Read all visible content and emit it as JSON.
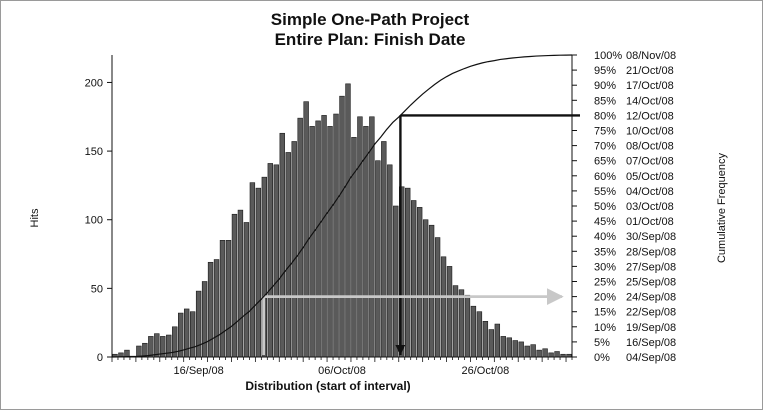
{
  "chart_data": {
    "type": "bar",
    "title": "Simple One-Path Project",
    "subtitle": "Entire Plan: Finish Date",
    "xlabel": "Distribution (start of interval)",
    "ylabel": "Hits",
    "y2label": "Cumulative Frequency",
    "ylim": [
      0,
      220
    ],
    "y_ticks": [
      0,
      50,
      100,
      150,
      200
    ],
    "x_tick_labels": [
      "16/Sep/08",
      "06/Oct/08",
      "26/Oct/08"
    ],
    "x_tick_bins": [
      14.5,
      38.5,
      62.5
    ],
    "bins": 77,
    "values": [
      2,
      3,
      5,
      0,
      8,
      10,
      15,
      17,
      15,
      16,
      22,
      32,
      35,
      33,
      48,
      55,
      69,
      71,
      85,
      85,
      104,
      107,
      98,
      127,
      123,
      131,
      141,
      140,
      163,
      149,
      157,
      174,
      186,
      168,
      172,
      176,
      168,
      177,
      190,
      199,
      160,
      175,
      168,
      175,
      143,
      157,
      140,
      110,
      124,
      123,
      114,
      109,
      100,
      96,
      87,
      73,
      66,
      52,
      49,
      45,
      37,
      33,
      26,
      20,
      24,
      15,
      14,
      12,
      11,
      8,
      9,
      5,
      6,
      3,
      4,
      2,
      2
    ],
    "cumulative_frequency_labels": [
      {
        "percent": "0%",
        "date": "04/Sep/08"
      },
      {
        "percent": "5%",
        "date": "16/Sep/08"
      },
      {
        "percent": "10%",
        "date": "19/Sep/08"
      },
      {
        "percent": "15%",
        "date": "22/Sep/08"
      },
      {
        "percent": "20%",
        "date": "24/Sep/08"
      },
      {
        "percent": "25%",
        "date": "25/Sep/08"
      },
      {
        "percent": "30%",
        "date": "27/Sep/08"
      },
      {
        "percent": "35%",
        "date": "28/Sep/08"
      },
      {
        "percent": "40%",
        "date": "30/Sep/08"
      },
      {
        "percent": "45%",
        "date": "01/Oct/08"
      },
      {
        "percent": "50%",
        "date": "03/Oct/08"
      },
      {
        "percent": "55%",
        "date": "04/Oct/08"
      },
      {
        "percent": "60%",
        "date": "05/Oct/08"
      },
      {
        "percent": "65%",
        "date": "07/Oct/08"
      },
      {
        "percent": "70%",
        "date": "08/Oct/08"
      },
      {
        "percent": "75%",
        "date": "10/Oct/08"
      },
      {
        "percent": "80%",
        "date": "12/Oct/08"
      },
      {
        "percent": "85%",
        "date": "14/Oct/08"
      },
      {
        "percent": "90%",
        "date": "17/Oct/08"
      },
      {
        "percent": "95%",
        "date": "21/Oct/08"
      },
      {
        "percent": "100%",
        "date": "08/Nov/08"
      }
    ],
    "markers": [
      {
        "percent": 80,
        "date": "12/Oct/08",
        "color": "#111111"
      },
      {
        "percent": 20,
        "date": "24/Sep/08",
        "color": "#c8c8c8"
      }
    ]
  }
}
